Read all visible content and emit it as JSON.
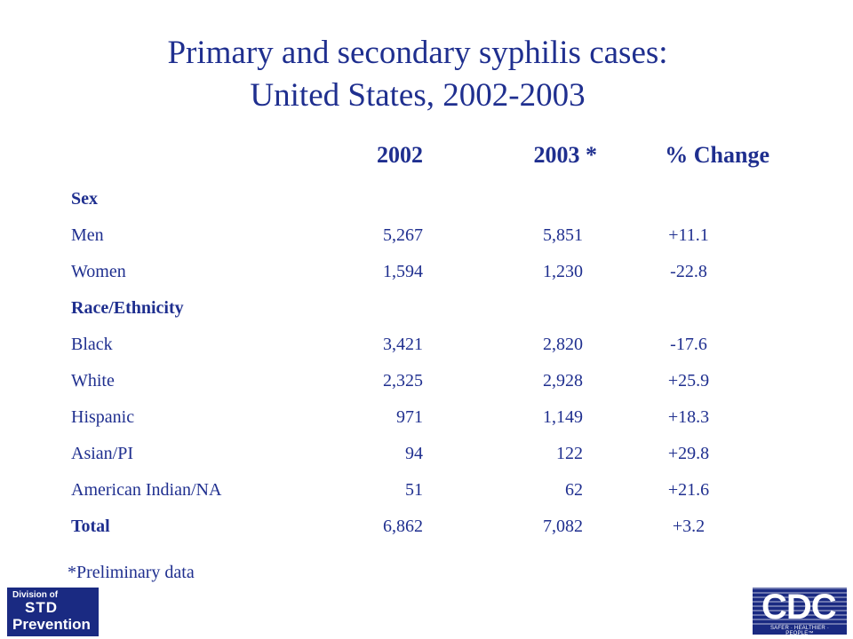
{
  "title": {
    "line1": "Primary and secondary syphilis cases:",
    "line2": "United States, 2002-2003"
  },
  "table": {
    "headers": [
      "2002",
      "2003 *",
      "% Change"
    ],
    "rows": [
      {
        "label": "Sex",
        "v2002": "",
        "v2003": "",
        "change": "",
        "bold": true
      },
      {
        "label": "Men",
        "v2002": "5,267",
        "v2003": "5,851",
        "change": "+11.1",
        "bold": false
      },
      {
        "label": "Women",
        "v2002": "1,594",
        "v2003": "1,230",
        "change": "-22.8",
        "bold": false
      },
      {
        "label": "Race/Ethnicity",
        "v2002": "",
        "v2003": "",
        "change": "",
        "bold": true
      },
      {
        "label": "Black",
        "v2002": "3,421",
        "v2003": "2,820",
        "change": "-17.6",
        "bold": false
      },
      {
        "label": "White",
        "v2002": "2,325",
        "v2003": "2,928",
        "change": "+25.9",
        "bold": false
      },
      {
        "label": "Hispanic",
        "v2002": "971",
        "v2003": "1,149",
        "change": "+18.3",
        "bold": false
      },
      {
        "label": "Asian/PI",
        "v2002": "94",
        "v2003": "122",
        "change": "+29.8",
        "bold": false
      },
      {
        "label": "American Indian/NA",
        "v2002": "51",
        "v2003": "62",
        "change": "+21.6",
        "bold": false
      },
      {
        "label": "Total",
        "v2002": "6,862",
        "v2003": "7,082",
        "change": "+3.2",
        "bold": true
      }
    ]
  },
  "footnote": "*Preliminary data",
  "logos": {
    "std": {
      "line1": "Division of",
      "line2": "STD",
      "line3": "Prevention"
    },
    "cdc": {
      "word": "CDC",
      "tagline": "SAFER · HEALTHIER · PEOPLE™"
    }
  },
  "colors": {
    "text": "#1f2f8f",
    "logo_bg": "#1a2a82",
    "background": "#ffffff"
  }
}
